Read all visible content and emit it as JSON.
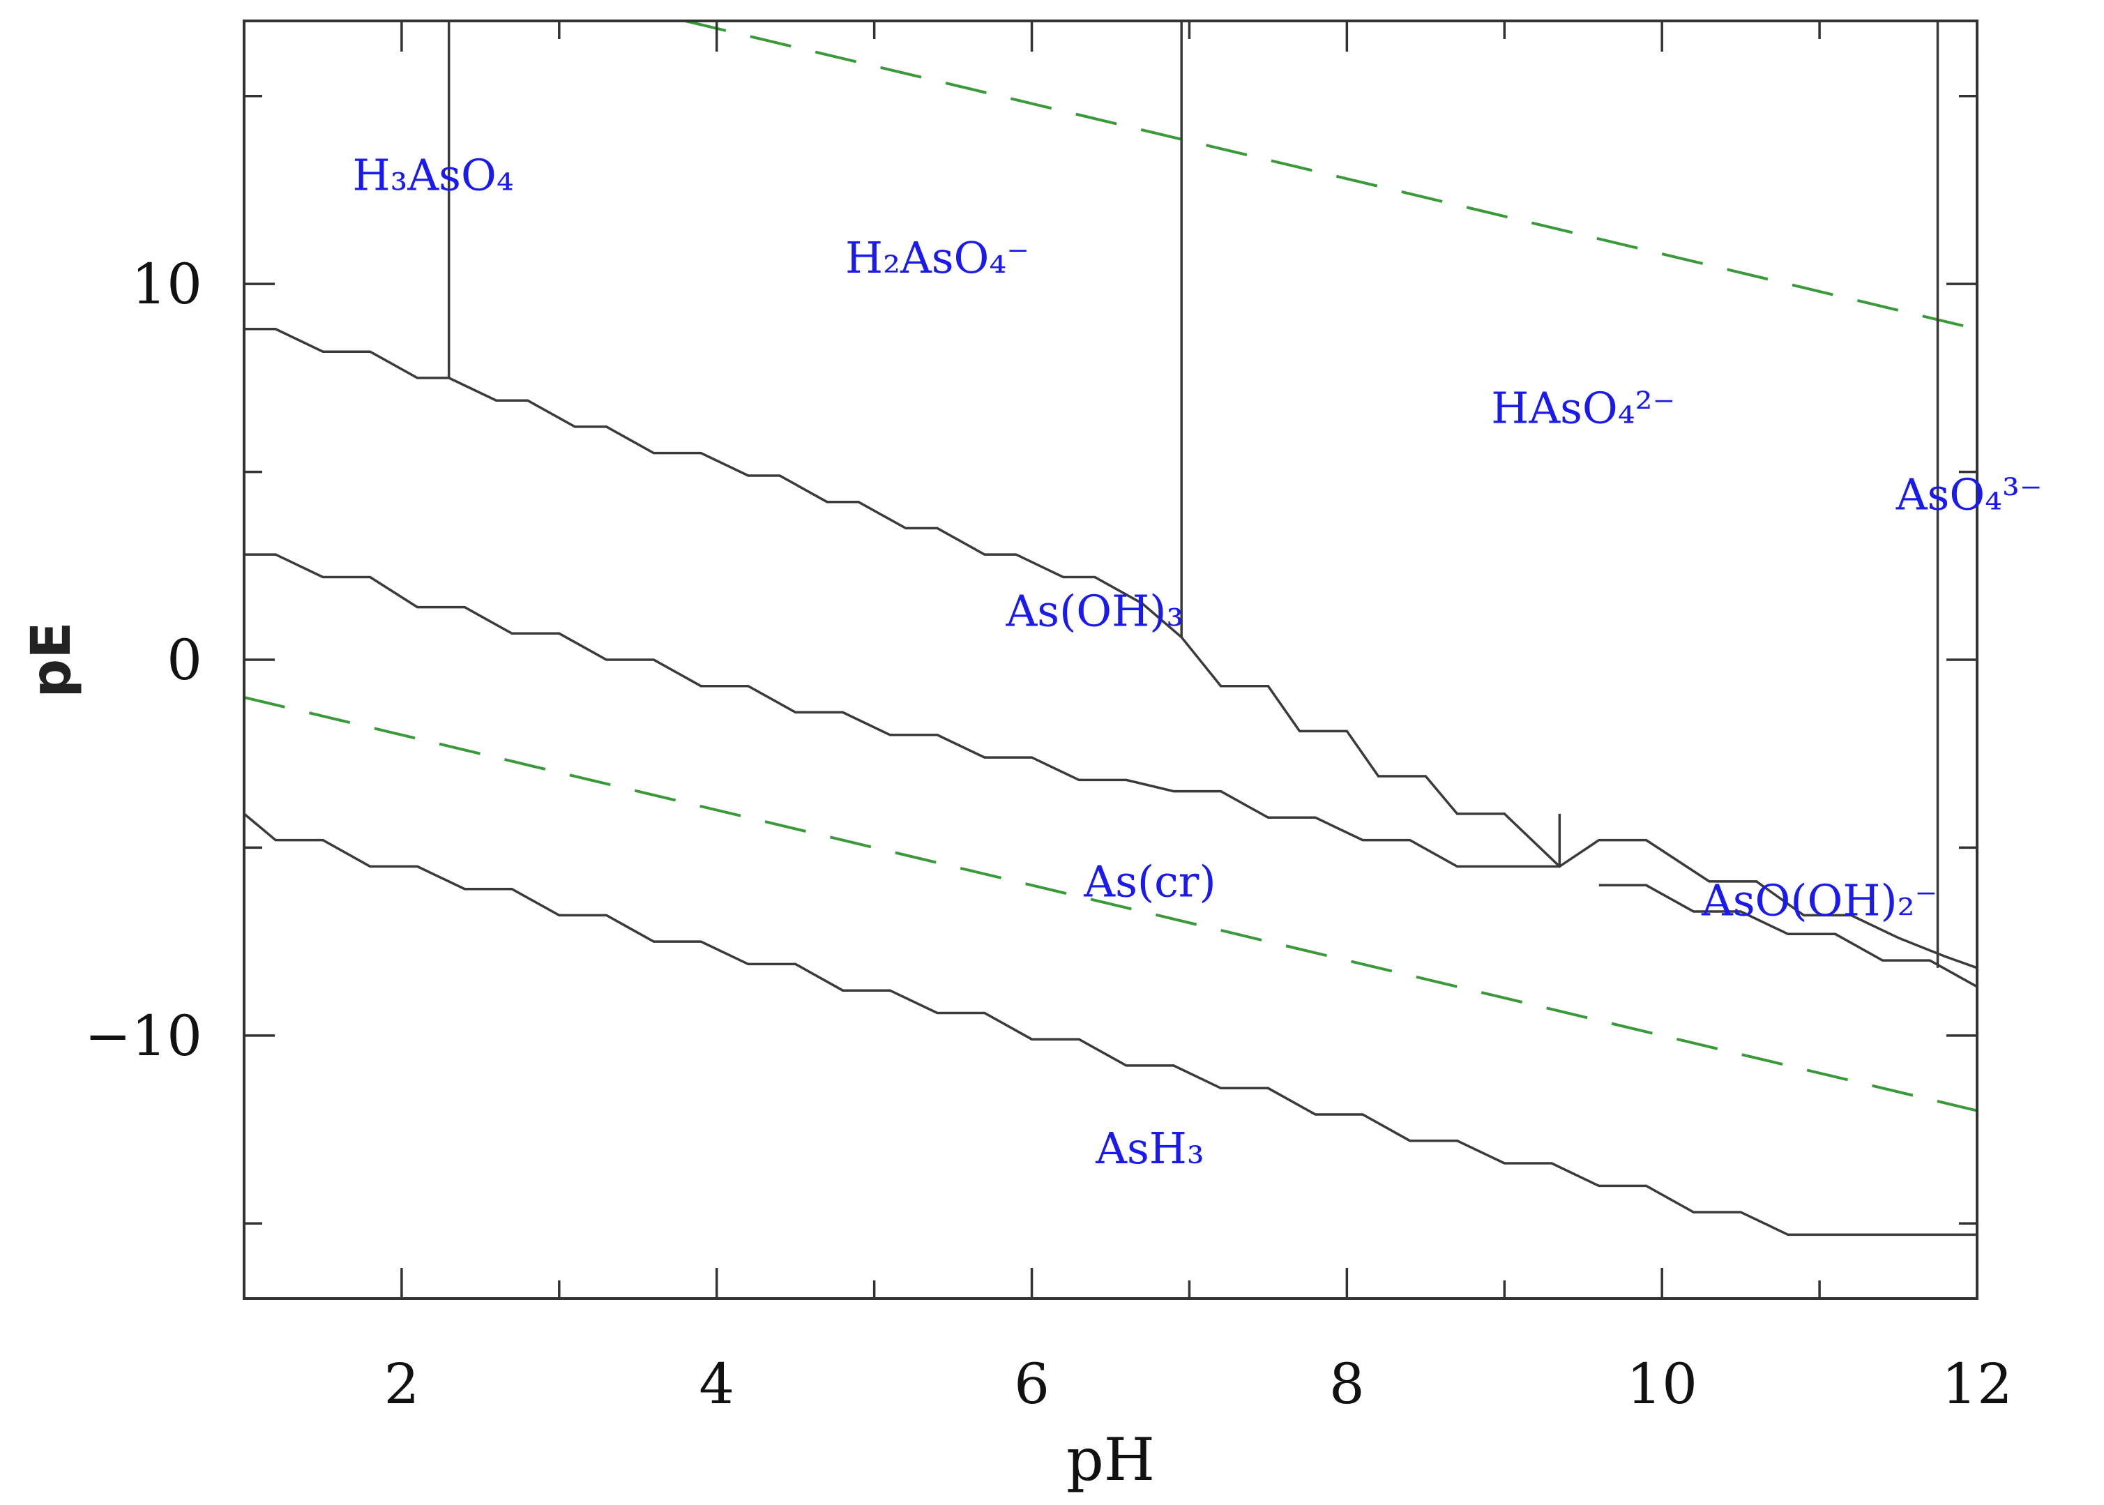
{
  "chart_data": {
    "type": "line",
    "xlabel": "pH",
    "ylabel": "pE",
    "xlim": [
      1,
      12
    ],
    "ylim": [
      -17,
      17
    ],
    "x_ticks": [
      2,
      4,
      6,
      8,
      10,
      12
    ],
    "y_ticks": [
      -10,
      0,
      10
    ],
    "x_minor_step": 1,
    "y_minor_step": 5,
    "grid": false,
    "colors": {
      "boundary": "#3a3a3a",
      "water_limit": "#3a9a3a",
      "label": "#1a1aee"
    },
    "regions": [
      {
        "label": "H₃AsO₄",
        "x": 2.2,
        "y": 12.5
      },
      {
        "label": "H₂AsO₄⁻",
        "x": 5.4,
        "y": 10.3
      },
      {
        "label": "HAsO₄²⁻",
        "x": 9.5,
        "y": 6.3
      },
      {
        "label": "AsO₄³⁻",
        "x": 11.95,
        "y": 4.0
      },
      {
        "label": "As(OH)₃",
        "x": 6.4,
        "y": 0.9
      },
      {
        "label": "As(cr)",
        "x": 6.75,
        "y": -6.3
      },
      {
        "label": "AsO(OH)₂⁻",
        "x": 11.0,
        "y": -6.8
      },
      {
        "label": "AsH₃",
        "x": 6.75,
        "y": -13.4
      }
    ],
    "water_limits": [
      {
        "x": [
          3.8,
          12
        ],
        "y": [
          17,
          8.8
        ]
      },
      {
        "x": [
          1,
          12
        ],
        "y": [
          -1,
          -12
        ]
      }
    ],
    "boundaries": [
      {
        "x": [
          2.3,
          2.3
        ],
        "y": [
          17,
          7.5
        ]
      },
      {
        "x": [
          6.95,
          6.95
        ],
        "y": [
          17,
          0.6
        ]
      },
      {
        "x": [
          11.75,
          11.75
        ],
        "y": [
          17,
          -8.2
        ]
      },
      {
        "x": [
          9.35,
          9.35
        ],
        "y": [
          -4.1,
          -5.5
        ]
      },
      {
        "x": [
          1,
          1.2,
          1.5,
          1.8,
          2.1,
          2.3,
          2.6,
          2.8,
          3.1,
          3.3,
          3.6,
          3.9,
          4.2,
          4.4,
          4.7,
          4.9,
          5.2,
          5.4,
          5.7,
          5.9,
          6.2,
          6.4,
          6.7,
          6.95
        ],
        "y": [
          8.8,
          8.8,
          8.2,
          8.2,
          7.5,
          7.5,
          6.9,
          6.9,
          6.2,
          6.2,
          5.5,
          5.5,
          4.9,
          4.9,
          4.2,
          4.2,
          3.5,
          3.5,
          2.8,
          2.8,
          2.2,
          2.2,
          1.5,
          0.6
        ]
      },
      {
        "x": [
          6.95,
          7.2,
          7.5,
          7.7,
          8.0,
          8.2,
          8.5,
          8.7,
          9.0,
          9.35,
          9.6,
          9.9,
          10.3,
          10.6,
          10.9,
          11.2,
          11.5,
          11.8,
          12.0
        ],
        "y": [
          0.6,
          -0.7,
          -0.7,
          -1.9,
          -1.9,
          -3.1,
          -3.1,
          -4.1,
          -4.1,
          -5.5,
          -4.8,
          -4.8,
          -5.9,
          -5.9,
          -6.8,
          -6.8,
          -7.4,
          -7.9,
          -8.2
        ]
      },
      {
        "x": [
          1,
          1.2,
          1.5,
          1.8,
          2.1,
          2.4,
          2.7,
          3.0,
          3.3,
          3.6,
          3.9,
          4.2,
          4.5,
          4.8,
          5.1,
          5.4,
          5.7,
          6.0,
          6.3,
          6.6,
          6.9,
          7.2,
          7.5,
          7.8,
          8.1,
          8.4,
          8.7,
          9.0,
          9.35
        ],
        "y": [
          2.8,
          2.8,
          2.2,
          2.2,
          1.4,
          1.4,
          0.7,
          0.7,
          0.0,
          0.0,
          -0.7,
          -0.7,
          -1.4,
          -1.4,
          -2.0,
          -2.0,
          -2.6,
          -2.6,
          -3.2,
          -3.2,
          -3.5,
          -3.5,
          -4.2,
          -4.2,
          -4.8,
          -4.8,
          -5.5,
          -5.5,
          -5.5
        ]
      },
      {
        "x": [
          9.6,
          9.9,
          10.2,
          10.5,
          10.8,
          11.1,
          11.4,
          11.7,
          12.0
        ],
        "y": [
          -6.0,
          -6.0,
          -6.7,
          -6.7,
          -7.3,
          -7.3,
          -8.0,
          -8.0,
          -8.7
        ]
      },
      {
        "x": [
          1,
          1.2,
          1.5,
          1.8,
          2.1,
          2.4,
          2.7,
          3.0,
          3.3,
          3.6,
          3.9,
          4.2,
          4.5,
          4.8,
          5.1,
          5.4,
          5.7,
          6.0,
          6.3,
          6.6,
          6.9,
          7.2,
          7.5,
          7.8,
          8.1,
          8.4,
          8.7,
          9.0,
          9.3,
          9.6,
          9.9,
          10.2,
          10.5,
          10.8,
          11.1,
          11.4,
          11.7,
          12.0
        ],
        "y": [
          -4.1,
          -4.8,
          -4.8,
          -5.5,
          -5.5,
          -6.1,
          -6.1,
          -6.8,
          -6.8,
          -7.5,
          -7.5,
          -8.1,
          -8.1,
          -8.8,
          -8.8,
          -9.4,
          -9.4,
          -10.1,
          -10.1,
          -10.8,
          -10.8,
          -11.4,
          -11.4,
          -12.1,
          -12.1,
          -12.8,
          -12.8,
          -13.4,
          -13.4,
          -14.0,
          -14.0,
          -14.7,
          -14.7,
          -15.3,
          -15.3,
          -15.3,
          -15.3,
          -15.3
        ]
      }
    ]
  }
}
